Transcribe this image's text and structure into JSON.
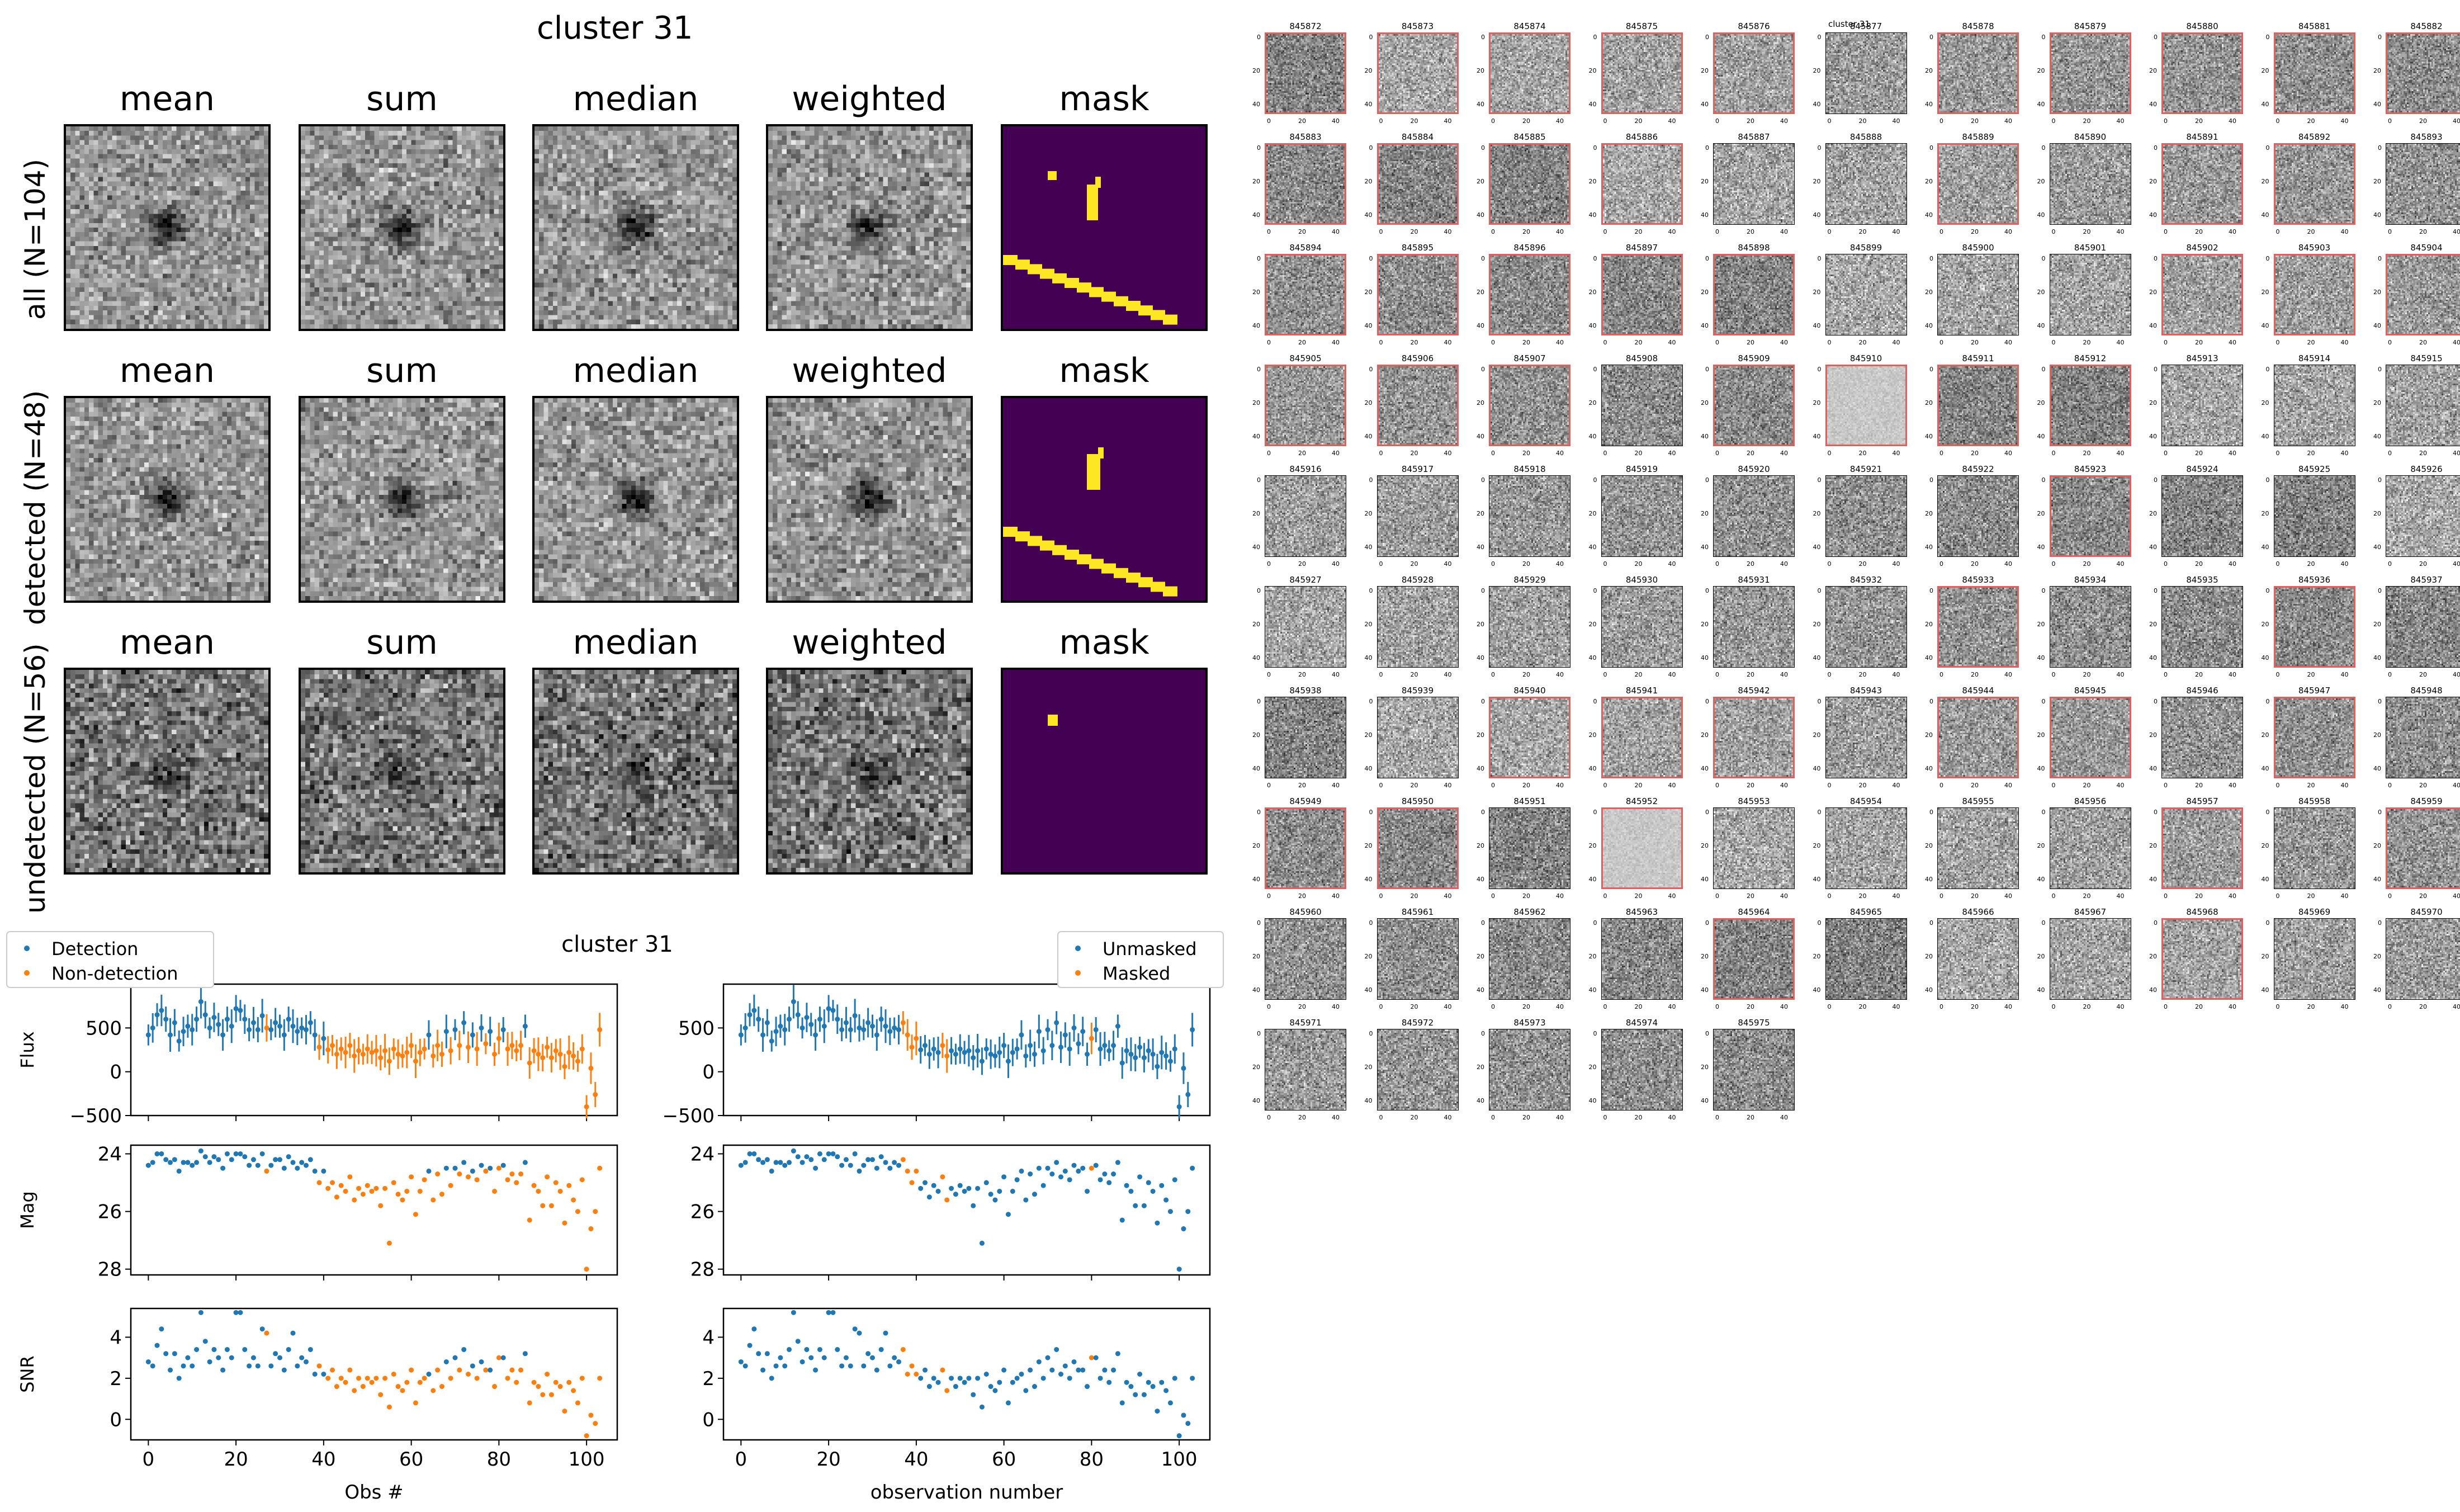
{
  "cluster_title": "cluster 31",
  "stat_titles": [
    "mean",
    "sum",
    "median",
    "weighted",
    "mask"
  ],
  "row_labels": [
    "all (N=104)",
    "detected (N=48)",
    "undetected (N=56)"
  ],
  "thumbnails": {
    "title_overlay": "cluster 31",
    "ids": [
      "845872",
      "845873",
      "845874",
      "845875",
      "845876",
      "845877",
      "845878",
      "845879",
      "845880",
      "845881",
      "845882",
      "845883",
      "845884",
      "845885",
      "845886",
      "845887",
      "845888",
      "845889",
      "845890",
      "845891",
      "845892",
      "845893",
      "845894",
      "845895",
      "845896",
      "845897",
      "845898",
      "845899",
      "845900",
      "845901",
      "845902",
      "845903",
      "845904",
      "845905",
      "845906",
      "845907",
      "845908",
      "845909",
      "845910",
      "845911",
      "845912",
      "845913",
      "845914",
      "845915",
      "845916",
      "845917",
      "845918",
      "845919",
      "845920",
      "845921",
      "845922",
      "845923",
      "845924",
      "845925",
      "845926",
      "845927",
      "845928",
      "845929",
      "845930",
      "845931",
      "845932",
      "845933",
      "845934",
      "845935",
      "845936",
      "845937",
      "845938",
      "845939",
      "845940",
      "845941",
      "845942",
      "845943",
      "845944",
      "845945",
      "845946",
      "845947",
      "845948",
      "845949",
      "845950",
      "845951",
      "845952",
      "845953",
      "845954",
      "845955",
      "845956",
      "845957",
      "845958",
      "845959",
      "845960",
      "845961",
      "845962",
      "845963",
      "845964",
      "845965",
      "845966",
      "845967",
      "845968",
      "845969",
      "845970",
      "845971",
      "845972",
      "845973",
      "845974",
      "845975"
    ],
    "flagged": [
      "845872",
      "845873",
      "845874",
      "845875",
      "845876",
      "845878",
      "845879",
      "845880",
      "845881",
      "845882",
      "845883",
      "845884",
      "845885",
      "845886",
      "845889",
      "845891",
      "845892",
      "845894",
      "845895",
      "845896",
      "845897",
      "845898",
      "845902",
      "845903",
      "845904",
      "845905",
      "845906",
      "845907",
      "845909",
      "845910",
      "845911",
      "845912",
      "845923",
      "845933",
      "845936",
      "845940",
      "845941",
      "845942",
      "845944",
      "845945",
      "845947",
      "845949",
      "845950",
      "845952",
      "845957",
      "845959",
      "845964",
      "845968"
    ],
    "y_ticks": [
      "0",
      "20",
      "40"
    ],
    "x_ticks": [
      "0",
      "20",
      "40"
    ]
  },
  "colors": {
    "detection": "#1f77b4",
    "nondetection": "#ff7f0e",
    "mask_bg": "#440154",
    "mask_fg": "#fde725",
    "flag_border": "#e06060"
  },
  "chart_data": [
    {
      "type": "scatter",
      "title": "cluster 31",
      "legend": {
        "placement": "top-left",
        "entries": [
          "Detection",
          "Non-detection"
        ]
      },
      "panels": [
        {
          "ylabel": "Flux",
          "ylim": [
            -500,
            1000
          ],
          "yticks": [
            500,
            0,
            -500
          ],
          "ytick_labels": [
            "500",
            "0",
            "−500"
          ],
          "errorbars": true
        },
        {
          "ylabel": "Mag",
          "ylim": [
            28.2,
            23.7
          ],
          "yticks": [
            24,
            26,
            28
          ],
          "ytick_labels": [
            "24",
            "26",
            "28"
          ],
          "inverted": true
        },
        {
          "ylabel": "SNR",
          "ylim": [
            -1,
            5.4
          ],
          "yticks": [
            4,
            2,
            0
          ],
          "ytick_labels": [
            "4",
            "2",
            "0"
          ]
        }
      ],
      "xlabel": "Obs #",
      "xlim": [
        -4,
        107
      ],
      "xticks": [
        0,
        20,
        40,
        60,
        80,
        100
      ],
      "xtick_labels": [
        "0",
        "20",
        "40",
        "60",
        "80",
        "100"
      ],
      "series": [
        {
          "name": "Detection",
          "x": [
            0,
            1,
            2,
            3,
            4,
            5,
            6,
            7,
            8,
            9,
            10,
            11,
            12,
            13,
            14,
            15,
            16,
            17,
            18,
            19,
            20,
            21,
            22,
            23,
            24,
            25,
            26,
            28,
            29,
            30,
            31,
            32,
            33,
            34,
            35,
            36,
            37,
            38,
            40,
            64,
            68,
            70,
            72,
            74,
            76,
            78,
            81,
            86
          ],
          "flux": [
            420,
            500,
            650,
            700,
            600,
            420,
            560,
            350,
            460,
            520,
            480,
            600,
            800,
            650,
            500,
            620,
            540,
            420,
            600,
            520,
            720,
            700,
            600,
            480,
            560,
            480,
            640,
            480,
            560,
            520,
            420,
            600,
            520,
            460,
            500,
            480,
            560,
            420,
            380,
            420,
            460,
            480,
            560,
            420,
            500,
            460,
            480,
            520
          ],
          "mag": [
            24.4,
            24.3,
            24.0,
            24.0,
            24.2,
            24.3,
            24.2,
            24.6,
            24.3,
            24.3,
            24.4,
            24.3,
            23.9,
            24.1,
            24.3,
            24.1,
            24.2,
            24.5,
            24.0,
            24.2,
            24.0,
            24.0,
            24.1,
            24.4,
            24.2,
            24.4,
            24.0,
            24.4,
            24.2,
            24.2,
            24.5,
            24.1,
            24.3,
            24.5,
            24.3,
            24.4,
            24.2,
            24.6,
            24.6,
            24.6,
            24.5,
            24.5,
            24.3,
            24.6,
            24.4,
            24.5,
            24.4,
            24.3
          ],
          "snr": [
            2.8,
            2.6,
            3.6,
            4.4,
            3.2,
            2.4,
            3.2,
            2.0,
            2.6,
            3.0,
            2.6,
            3.4,
            5.2,
            3.8,
            2.8,
            3.4,
            3.0,
            2.4,
            3.4,
            3.0,
            5.2,
            5.2,
            3.4,
            2.6,
            3.0,
            2.6,
            4.4,
            2.6,
            3.2,
            3.0,
            2.4,
            3.4,
            4.2,
            2.6,
            3.0,
            2.8,
            3.4,
            2.2,
            2.2,
            2.2,
            2.8,
            3.0,
            3.4,
            2.6,
            2.8,
            2.4,
            3.0,
            3.2
          ]
        },
        {
          "name": "Non-detection",
          "x": [
            27,
            39,
            41,
            42,
            43,
            44,
            45,
            46,
            47,
            48,
            49,
            50,
            51,
            52,
            53,
            54,
            55,
            56,
            57,
            58,
            59,
            60,
            61,
            62,
            63,
            65,
            66,
            67,
            69,
            71,
            73,
            75,
            77,
            79,
            80,
            82,
            83,
            84,
            85,
            87,
            88,
            89,
            90,
            91,
            92,
            93,
            94,
            95,
            96,
            97,
            98,
            99,
            100,
            101,
            102,
            103
          ],
          "flux": [
            500,
            280,
            250,
            300,
            200,
            260,
            220,
            300,
            180,
            240,
            200,
            260,
            220,
            240,
            160,
            240,
            120,
            260,
            200,
            180,
            220,
            300,
            120,
            220,
            260,
            180,
            300,
            200,
            240,
            300,
            280,
            260,
            320,
            200,
            380,
            260,
            300,
            240,
            300,
            100,
            240,
            200,
            160,
            280,
            160,
            240,
            200,
            60,
            220,
            180,
            120,
            260,
            -400,
            40,
            -260,
            480
          ],
          "mag": [
            24.6,
            25.0,
            25.2,
            25.0,
            25.5,
            25.1,
            25.3,
            24.8,
            25.6,
            25.2,
            25.4,
            25.1,
            25.3,
            25.2,
            25.8,
            25.2,
            27.1,
            25.0,
            25.4,
            25.6,
            25.3,
            24.8,
            26.1,
            25.3,
            24.9,
            25.6,
            24.7,
            25.4,
            25.1,
            24.7,
            24.8,
            24.9,
            24.6,
            25.3,
            24.5,
            24.9,
            24.7,
            25.0,
            24.7,
            26.3,
            25.1,
            25.3,
            25.8,
            24.8,
            25.8,
            25.0,
            25.3,
            26.4,
            25.1,
            25.6,
            26.0,
            24.9,
            28.0,
            26.6,
            26.0,
            24.5
          ],
          "snr": [
            4.2,
            2.6,
            2.0,
            2.4,
            1.6,
            2.0,
            1.8,
            2.4,
            1.4,
            2.0,
            1.6,
            2.0,
            1.8,
            2.0,
            1.2,
            2.0,
            0.6,
            2.2,
            1.6,
            1.4,
            1.8,
            2.4,
            0.8,
            1.8,
            2.0,
            1.4,
            2.4,
            1.6,
            2.0,
            2.4,
            2.2,
            2.0,
            2.4,
            1.6,
            3.0,
            2.0,
            2.4,
            1.8,
            2.4,
            0.8,
            1.8,
            1.6,
            1.2,
            2.2,
            1.2,
            1.8,
            1.6,
            0.4,
            1.8,
            1.4,
            0.8,
            2.0,
            -0.8,
            0.2,
            -0.2,
            2.0
          ]
        }
      ]
    },
    {
      "type": "scatter",
      "title": "",
      "legend": {
        "placement": "top-right",
        "entries": [
          "Unmasked",
          "Masked"
        ]
      },
      "panels": [
        {
          "ylabel": "",
          "ylim": [
            -500,
            1000
          ],
          "yticks": [
            500,
            0,
            -500
          ],
          "ytick_labels": [
            "500",
            "0",
            "−500"
          ],
          "errorbars": true
        },
        {
          "ylabel": "",
          "ylim": [
            28.2,
            23.7
          ],
          "yticks": [
            24,
            26,
            28
          ],
          "ytick_labels": [
            "24",
            "26",
            "28"
          ],
          "inverted": true
        },
        {
          "ylabel": "",
          "ylim": [
            -1,
            5.4
          ],
          "yticks": [
            4,
            2,
            0
          ],
          "ytick_labels": [
            "4",
            "2",
            "0"
          ]
        }
      ],
      "xlabel": "observation number",
      "xlim": [
        -4,
        107
      ],
      "xticks": [
        0,
        20,
        40,
        60,
        80,
        100
      ],
      "xtick_labels": [
        "0",
        "20",
        "40",
        "60",
        "80",
        "100"
      ],
      "series": [
        {
          "name": "Unmasked",
          "x": "all_except_masked"
        },
        {
          "name": "Masked",
          "x": [
            37,
            38,
            39,
            40,
            46,
            47,
            80
          ]
        }
      ]
    }
  ]
}
